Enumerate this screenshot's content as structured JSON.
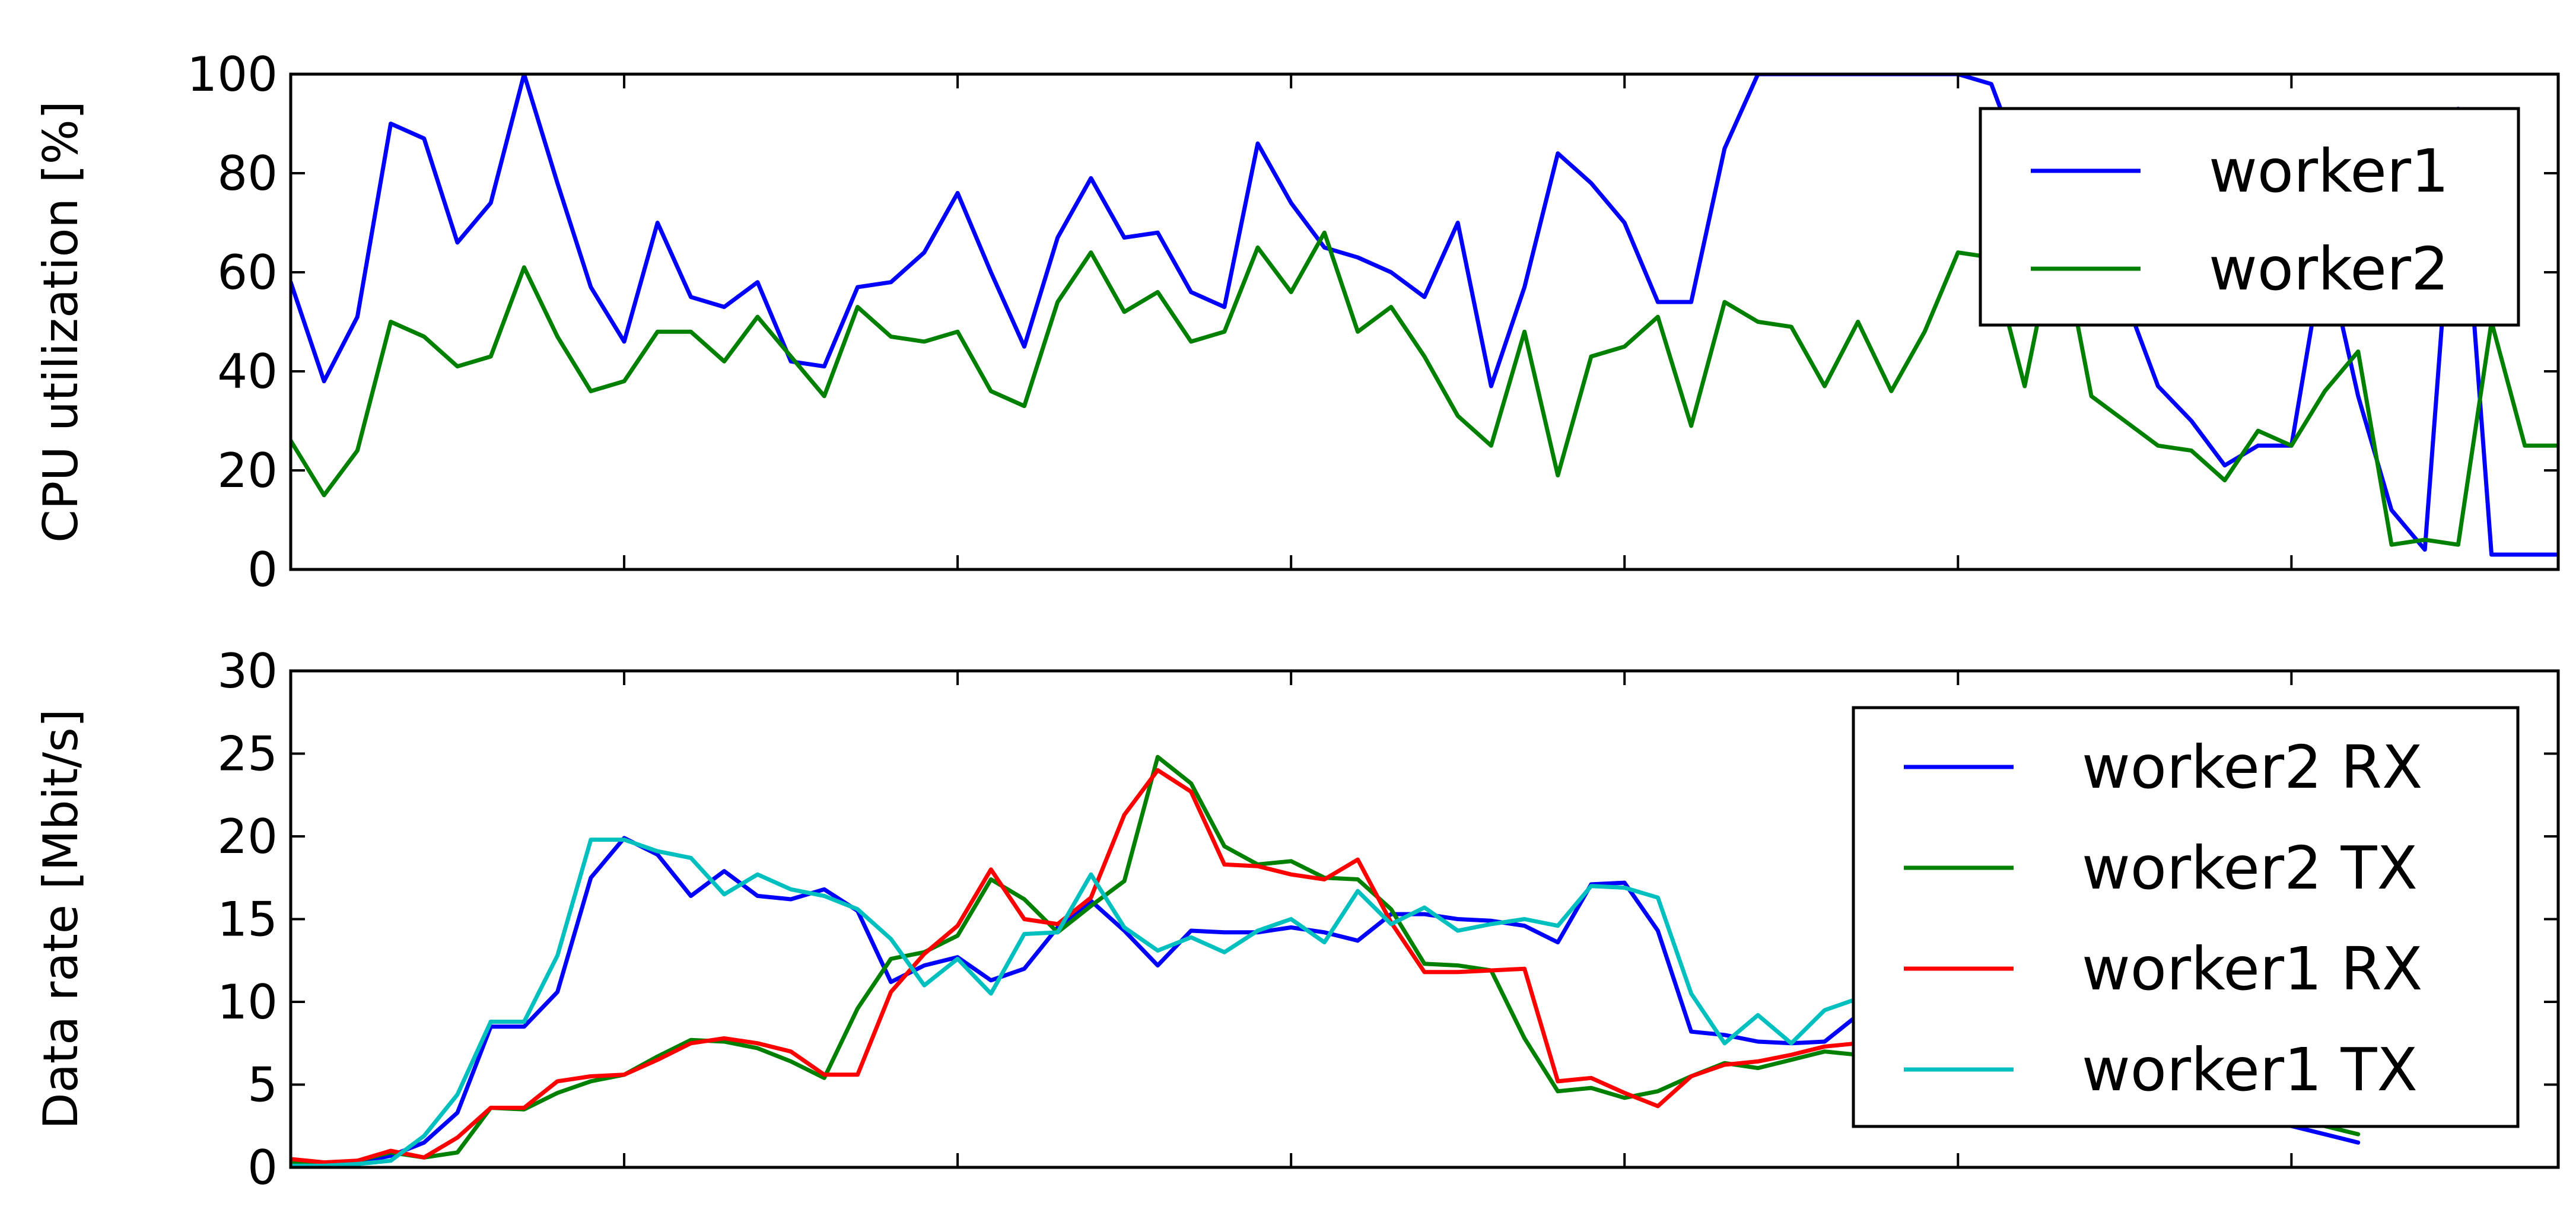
{
  "chart_data": [
    {
      "type": "line",
      "ylabel": "CPU utilization [%]",
      "xlabel": "",
      "ylim": [
        0,
        100
      ],
      "xlim": [
        0,
        68
      ],
      "yticks": [
        0,
        20,
        40,
        60,
        80,
        100
      ],
      "xticks": [
        0,
        10,
        20,
        30,
        40,
        50,
        60
      ],
      "grid": false,
      "legend_position": "top-right",
      "series": [
        {
          "name": "worker1",
          "color": "#0000ff",
          "x": [
            0,
            1,
            2,
            3,
            4,
            5,
            6,
            7,
            8,
            9,
            10,
            11,
            12,
            13,
            14,
            15,
            16,
            17,
            18,
            19,
            20,
            21,
            22,
            23,
            24,
            25,
            26,
            27,
            28,
            29,
            30,
            31,
            32,
            33,
            34,
            35,
            36,
            37,
            38,
            39,
            40,
            41,
            42,
            43,
            44,
            45,
            46,
            47,
            48,
            49,
            50,
            51,
            52,
            53,
            54,
            55,
            56,
            57,
            58,
            59,
            60,
            61,
            62,
            63,
            64,
            65,
            66,
            67,
            68
          ],
          "values": [
            58,
            38,
            51,
            90,
            87,
            66,
            74,
            100,
            78,
            57,
            46,
            70,
            55,
            53,
            58,
            42,
            41,
            57,
            58,
            64,
            76,
            60,
            45,
            67,
            79,
            67,
            68,
            56,
            53,
            86,
            74,
            65,
            63,
            60,
            55,
            70,
            37,
            57,
            84,
            78,
            70,
            54,
            54,
            85,
            100,
            100,
            100,
            100,
            100,
            100,
            100,
            98,
            80,
            70,
            60,
            55,
            37,
            30,
            21,
            25,
            25,
            65,
            35,
            12,
            4,
            93,
            3,
            3,
            3
          ]
        },
        {
          "name": "worker2",
          "color": "#008000",
          "x": [
            0,
            1,
            2,
            3,
            4,
            5,
            6,
            7,
            8,
            9,
            10,
            11,
            12,
            13,
            14,
            15,
            16,
            17,
            18,
            19,
            20,
            21,
            22,
            23,
            24,
            25,
            26,
            27,
            28,
            29,
            30,
            31,
            32,
            33,
            34,
            35,
            36,
            37,
            38,
            39,
            40,
            41,
            42,
            43,
            44,
            45,
            46,
            47,
            48,
            49,
            50,
            51,
            52,
            53,
            54,
            55,
            56,
            57,
            58,
            59,
            60,
            61,
            62,
            63,
            64,
            65,
            66,
            67,
            68
          ],
          "values": [
            26,
            15,
            24,
            50,
            47,
            41,
            43,
            61,
            47,
            36,
            38,
            48,
            48,
            42,
            51,
            43,
            35,
            53,
            47,
            46,
            48,
            36,
            33,
            54,
            64,
            52,
            56,
            46,
            48,
            65,
            56,
            68,
            48,
            53,
            43,
            31,
            25,
            48,
            19,
            43,
            45,
            51,
            29,
            54,
            50,
            49,
            37,
            50,
            36,
            48,
            64,
            63,
            37,
            70,
            35,
            30,
            25,
            24,
            18,
            28,
            25,
            36,
            44,
            5,
            6,
            5,
            50,
            25,
            25
          ]
        }
      ]
    },
    {
      "type": "line",
      "ylabel": "Data rate [Mbit/s]",
      "xlabel": "",
      "ylim": [
        0,
        30
      ],
      "xlim": [
        0,
        68
      ],
      "yticks": [
        0,
        5,
        10,
        15,
        20,
        25,
        30
      ],
      "xticks": [
        0,
        10,
        20,
        30,
        40,
        50,
        60
      ],
      "grid": false,
      "legend_position": "top-right",
      "series": [
        {
          "name": "worker2 RX",
          "color": "#0000ff",
          "x": [
            0,
            1,
            2,
            3,
            4,
            5,
            6,
            7,
            8,
            9,
            10,
            11,
            12,
            13,
            14,
            15,
            16,
            17,
            18,
            19,
            20,
            21,
            22,
            23,
            24,
            25,
            26,
            27,
            28,
            29,
            30,
            31,
            32,
            33,
            34,
            35,
            36,
            37,
            38,
            39,
            40,
            41,
            42,
            43,
            44,
            45,
            46,
            47,
            48,
            49,
            50,
            51,
            52,
            53,
            54,
            55,
            56,
            57,
            58,
            59,
            60,
            61,
            62
          ],
          "values": [
            0.2,
            0.2,
            0.3,
            0.7,
            1.5,
            3.3,
            8.5,
            8.5,
            10.6,
            17.5,
            19.9,
            18.9,
            16.4,
            17.9,
            16.4,
            16.2,
            16.8,
            15.5,
            11.2,
            12.2,
            12.7,
            11.3,
            12.0,
            14.5,
            16.1,
            14.3,
            12.2,
            14.3,
            14.2,
            14.2,
            14.5,
            14.2,
            13.7,
            15.3,
            15.3,
            15.0,
            14.9,
            14.6,
            13.6,
            17.1,
            17.2,
            14.3,
            8.2,
            8.0,
            7.6,
            7.5,
            7.6,
            9.2,
            9.0,
            8.5,
            8.0,
            7.0,
            6.5,
            6.0,
            5.5,
            5.0,
            4.5,
            4.0,
            3.5,
            3.0,
            2.5,
            2.0,
            1.5
          ]
        },
        {
          "name": "worker2 TX",
          "color": "#008000",
          "x": [
            0,
            1,
            2,
            3,
            4,
            5,
            6,
            7,
            8,
            9,
            10,
            11,
            12,
            13,
            14,
            15,
            16,
            17,
            18,
            19,
            20,
            21,
            22,
            23,
            24,
            25,
            26,
            27,
            28,
            29,
            30,
            31,
            32,
            33,
            34,
            35,
            36,
            37,
            38,
            39,
            40,
            41,
            42,
            43,
            44,
            45,
            46,
            47,
            48,
            49,
            50,
            51,
            52,
            53,
            54,
            55,
            56,
            57,
            58,
            59,
            60,
            61,
            62
          ],
          "values": [
            0.3,
            0.2,
            0.4,
            0.9,
            0.6,
            0.9,
            3.6,
            3.5,
            4.5,
            5.2,
            5.6,
            6.7,
            7.7,
            7.6,
            7.2,
            6.4,
            5.4,
            9.6,
            12.6,
            13.0,
            14.0,
            17.4,
            16.2,
            14.2,
            15.8,
            17.3,
            24.8,
            23.2,
            19.4,
            18.3,
            18.5,
            17.5,
            17.4,
            15.6,
            12.3,
            12.2,
            11.9,
            7.8,
            4.6,
            4.8,
            4.2,
            4.6,
            5.5,
            6.3,
            6.0,
            6.5,
            7.0,
            6.8,
            6.5,
            6.0,
            5.5,
            5.0,
            4.8,
            4.6,
            4.4,
            4.2,
            4.0,
            3.8,
            3.6,
            3.4,
            3.2,
            2.5,
            2.0
          ]
        },
        {
          "name": "worker1 RX",
          "color": "#ff0000",
          "x": [
            0,
            1,
            2,
            3,
            4,
            5,
            6,
            7,
            8,
            9,
            10,
            11,
            12,
            13,
            14,
            15,
            16,
            17,
            18,
            19,
            20,
            21,
            22,
            23,
            24,
            25,
            26,
            27,
            28,
            29,
            30,
            31,
            32,
            33,
            34,
            35,
            36,
            37,
            38,
            39,
            40,
            41,
            42,
            43,
            44,
            45,
            46,
            47,
            48,
            49,
            50,
            51,
            52,
            53,
            54,
            55,
            56,
            57,
            58,
            59,
            60,
            61,
            62
          ],
          "values": [
            0.5,
            0.3,
            0.4,
            1.0,
            0.6,
            1.8,
            3.6,
            3.6,
            5.2,
            5.5,
            5.6,
            6.5,
            7.5,
            7.8,
            7.5,
            7.0,
            5.6,
            5.6,
            10.6,
            12.9,
            14.6,
            18.0,
            15.0,
            14.7,
            16.3,
            21.3,
            24.0,
            22.7,
            18.3,
            18.2,
            17.7,
            17.4,
            18.6,
            14.8,
            11.8,
            11.8,
            11.9,
            12.0,
            5.2,
            5.4,
            4.5,
            3.7,
            5.5,
            6.2,
            6.4,
            6.8,
            7.3,
            7.5,
            7.2,
            7.0,
            6.8,
            6.5,
            6.3,
            6.0,
            5.8,
            5.5,
            5.2,
            5.0,
            4.8,
            4.6,
            4.4,
            4.2,
            4.0
          ]
        },
        {
          "name": "worker1 TX",
          "color": "#00bfbf",
          "x": [
            0,
            1,
            2,
            3,
            4,
            5,
            6,
            7,
            8,
            9,
            10,
            11,
            12,
            13,
            14,
            15,
            16,
            17,
            18,
            19,
            20,
            21,
            22,
            23,
            24,
            25,
            26,
            27,
            28,
            29,
            30,
            31,
            32,
            33,
            34,
            35,
            36,
            37,
            38,
            39,
            40,
            41,
            42,
            43,
            44,
            45,
            46,
            47,
            48,
            49,
            50,
            51,
            52,
            53,
            54,
            55,
            56,
            57,
            58,
            59,
            60,
            61,
            62
          ],
          "values": [
            0.1,
            0.1,
            0.2,
            0.4,
            1.9,
            4.4,
            8.8,
            8.8,
            12.8,
            19.8,
            19.8,
            19.1,
            18.7,
            16.5,
            17.7,
            16.8,
            16.4,
            15.6,
            13.8,
            11.0,
            12.6,
            10.5,
            14.1,
            14.2,
            17.7,
            14.5,
            13.1,
            13.9,
            13.0,
            14.3,
            15.0,
            13.6,
            16.7,
            14.7,
            15.7,
            14.3,
            14.7,
            15.0,
            14.6,
            17.0,
            16.9,
            16.3,
            10.5,
            7.5,
            9.2,
            7.5,
            9.5,
            10.2,
            9.8,
            9.5,
            9.0,
            8.5,
            8.0,
            7.5,
            7.0,
            6.5,
            6.0,
            5.5,
            5.0,
            4.5,
            4.0,
            3.5,
            3.0
          ]
        }
      ]
    }
  ]
}
